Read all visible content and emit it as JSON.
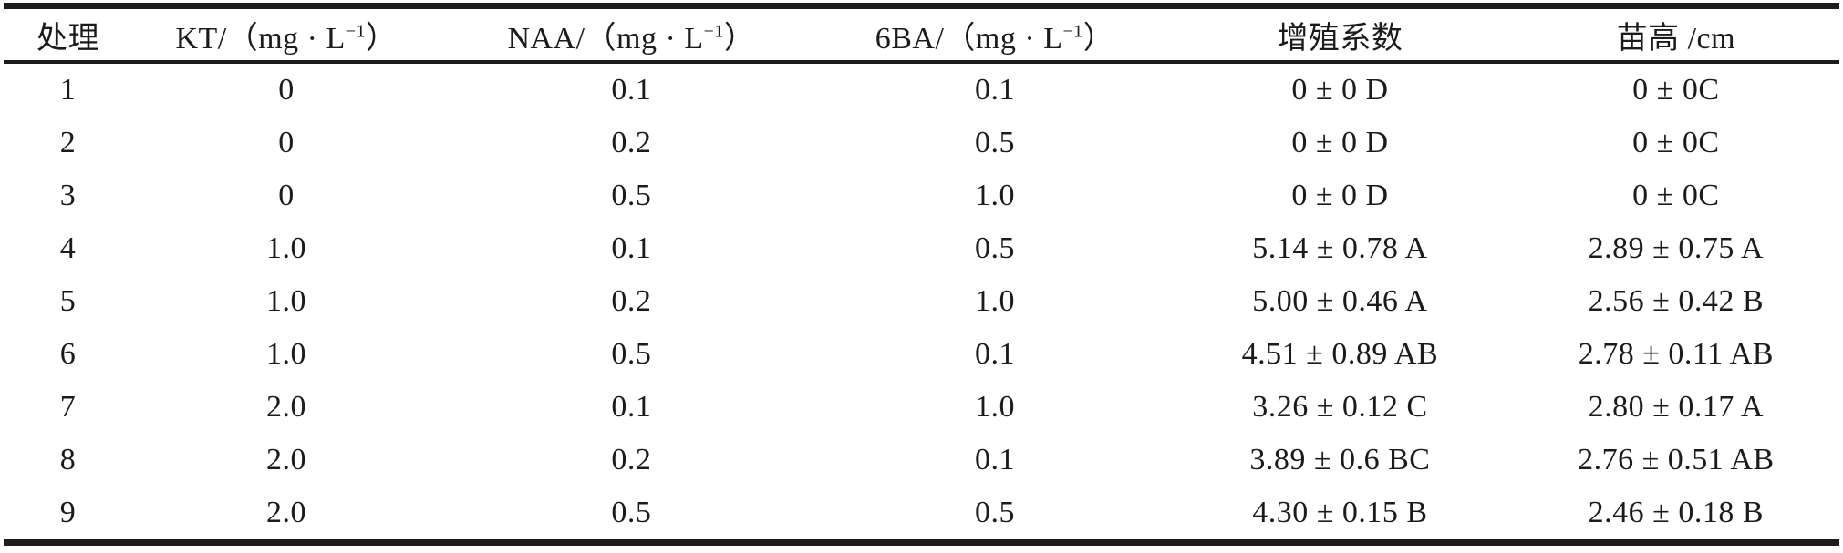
{
  "table": {
    "columns": [
      {
        "id": "treatment",
        "label": "处理"
      },
      {
        "id": "kt",
        "label_pre": "KT/（mg · L",
        "sup": "−1",
        "label_post": "）"
      },
      {
        "id": "naa",
        "label_pre": "NAA/（mg · L",
        "sup": "−1",
        "label_post": "）"
      },
      {
        "id": "6ba",
        "label_pre": "6BA/（mg · L",
        "sup": "−1",
        "label_post": "）"
      },
      {
        "id": "proliferation_coefficient",
        "label": "增殖系数"
      },
      {
        "id": "seedling_height",
        "label": "苗高 /cm"
      }
    ],
    "rows": [
      [
        "1",
        "0",
        "0.1",
        "0.1",
        "0 ± 0 D",
        "0 ± 0C"
      ],
      [
        "2",
        "0",
        "0.2",
        "0.5",
        "0 ± 0 D",
        "0 ± 0C"
      ],
      [
        "3",
        "0",
        "0.5",
        "1.0",
        "0 ± 0 D",
        "0 ± 0C"
      ],
      [
        "4",
        "1.0",
        "0.1",
        "0.5",
        "5.14 ± 0.78 A",
        "2.89 ± 0.75 A"
      ],
      [
        "5",
        "1.0",
        "0.2",
        "1.0",
        "5.00 ± 0.46 A",
        "2.56 ± 0.42 B"
      ],
      [
        "6",
        "1.0",
        "0.5",
        "0.1",
        "4.51 ± 0.89 AB",
        "2.78 ± 0.11 AB"
      ],
      [
        "7",
        "2.0",
        "0.1",
        "1.0",
        "3.26 ± 0.12 C",
        "2.80 ± 0.17 A"
      ],
      [
        "8",
        "2.0",
        "0.2",
        "0.1",
        "3.89 ± 0.6 BC",
        "2.76 ± 0.51 AB"
      ],
      [
        "9",
        "2.0",
        "0.5",
        "0.5",
        "4.30 ± 0.15 B",
        "2.46 ± 0.18 B"
      ]
    ]
  },
  "colors": {
    "background": "#ffffff",
    "text": "#1b1b1b",
    "rule": "#1c1c1c"
  }
}
